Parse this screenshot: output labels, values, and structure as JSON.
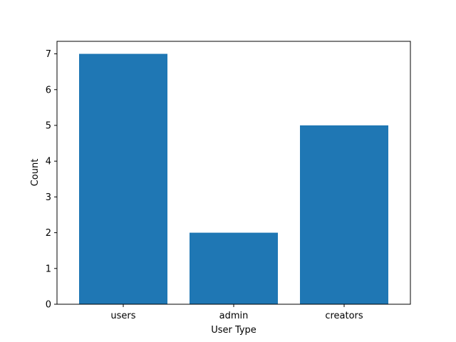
{
  "chart_data": {
    "type": "bar",
    "categories": [
      "users",
      "admin",
      "creators"
    ],
    "values": [
      7,
      2,
      5
    ],
    "title": "",
    "xlabel": "User Type",
    "ylabel": "Count",
    "ylim": [
      0,
      7.35
    ],
    "yticks": [
      0,
      1,
      2,
      3,
      4,
      5,
      6,
      7
    ],
    "bar_color": "#1f77b4",
    "grid": false,
    "legend": "none"
  }
}
